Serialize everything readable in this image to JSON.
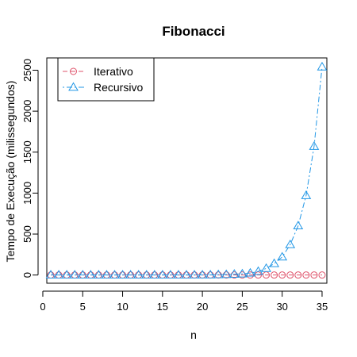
{
  "chart_data": {
    "type": "line",
    "title": "Fibonacci",
    "xlabel": "n",
    "ylabel": "Tempo de Execução (milissegundos)",
    "xlim": [
      0.5,
      35.6
    ],
    "ylim": [
      -100,
      2650
    ],
    "x_ticks": [
      0,
      5,
      10,
      15,
      20,
      25,
      30,
      35
    ],
    "y_ticks": [
      0,
      500,
      1000,
      1500,
      2000,
      2500
    ],
    "grid": false,
    "legend_position": "top-left",
    "x": [
      1,
      2,
      3,
      4,
      5,
      6,
      7,
      8,
      9,
      10,
      11,
      12,
      13,
      14,
      15,
      16,
      17,
      18,
      19,
      20,
      21,
      22,
      23,
      24,
      25,
      26,
      27,
      28,
      29,
      30,
      31,
      32,
      33,
      34,
      35
    ],
    "series": [
      {
        "name": "Iterativo",
        "color": "#DF536B",
        "marker": "circle",
        "line": "dashed",
        "values": [
          0,
          0,
          0,
          0,
          0,
          0,
          0,
          0,
          0,
          0,
          0,
          0,
          0,
          0,
          0,
          0,
          0,
          0,
          0,
          0,
          0,
          0,
          0,
          0,
          0,
          0,
          0,
          0,
          0,
          0,
          0,
          0,
          0,
          0,
          0
        ]
      },
      {
        "name": "Recursivo",
        "color": "#2297E6",
        "marker": "triangle",
        "line": "dotdash",
        "values": [
          0,
          0,
          0,
          0,
          0,
          0,
          0,
          0,
          0,
          0,
          0,
          0,
          0,
          0,
          0,
          0,
          0,
          0,
          1,
          1,
          2,
          4,
          6,
          10,
          14,
          24,
          44,
          80,
          140,
          220,
          370,
          600,
          970,
          1570,
          2540
        ]
      }
    ]
  }
}
